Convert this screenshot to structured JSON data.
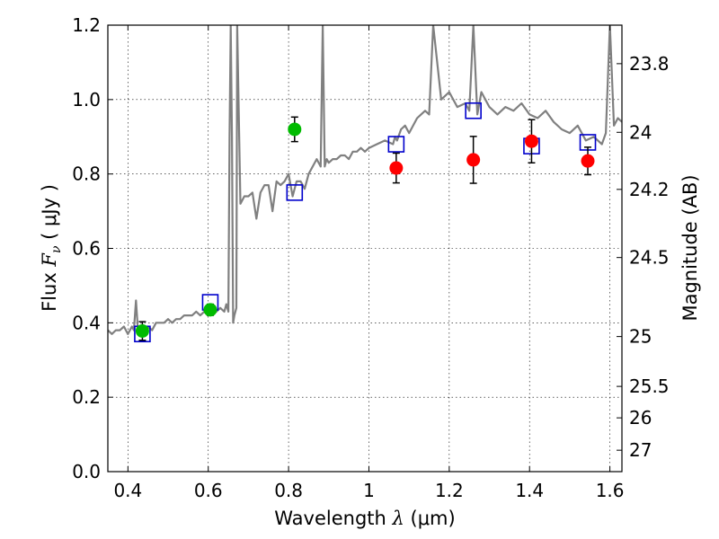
{
  "chart_data": {
    "type": "scatter",
    "title": "",
    "xlabel": {
      "prefix": "Wavelength  ",
      "symbol": "λ",
      "units": " (μm)"
    },
    "ylabel": {
      "prefix": "Flux  ",
      "symbol": "F",
      "subscript": "ν",
      "units": "  ( μJy )"
    },
    "y2label": "Magnitude (AB)",
    "xlim": [
      0.35,
      1.63
    ],
    "ylim": [
      0.0,
      1.2
    ],
    "xticks": [
      {
        "value": 0.4,
        "label": "0.4"
      },
      {
        "value": 0.6,
        "label": "0.6"
      },
      {
        "value": 0.8,
        "label": "0.8"
      },
      {
        "value": 1.0,
        "label": "1"
      },
      {
        "value": 1.2,
        "label": "1.2"
      },
      {
        "value": 1.4,
        "label": "1.4"
      },
      {
        "value": 1.6,
        "label": "1.6"
      }
    ],
    "yticks": [
      {
        "value": 0.0,
        "label": "0.0"
      },
      {
        "value": 0.2,
        "label": "0.2"
      },
      {
        "value": 0.4,
        "label": "0.4"
      },
      {
        "value": 0.6,
        "label": "0.6"
      },
      {
        "value": 0.8,
        "label": "0.8"
      },
      {
        "value": 1.0,
        "label": "1.0"
      },
      {
        "value": 1.2,
        "label": "1.2"
      }
    ],
    "y2ticks": [
      {
        "label": "23.8",
        "mag": 23.8
      },
      {
        "label": "24",
        "mag": 24.0
      },
      {
        "label": "24.2",
        "mag": 24.2
      },
      {
        "label": "24.5",
        "mag": 24.5
      },
      {
        "label": "25",
        "mag": 25.0
      },
      {
        "label": "25.5",
        "mag": 25.5
      },
      {
        "label": "26",
        "mag": 26.0
      },
      {
        "label": "27",
        "mag": 27.0
      }
    ],
    "grid": true,
    "colors": {
      "model": "#808080",
      "green_points": "#00bb00",
      "red_points": "#ff0000",
      "model_boxes": "#0000cc",
      "errorbars": "#000000"
    },
    "series": [
      {
        "kind": "line",
        "x": [
          0.35,
          0.36,
          0.37,
          0.38,
          0.39,
          0.4,
          0.41,
          0.415,
          0.42,
          0.425,
          0.43,
          0.44,
          0.45,
          0.46,
          0.47,
          0.48,
          0.49,
          0.5,
          0.51,
          0.52,
          0.53,
          0.54,
          0.55,
          0.56,
          0.57,
          0.58,
          0.59,
          0.6,
          0.61,
          0.62,
          0.63,
          0.64,
          0.645,
          0.65,
          0.653,
          0.656,
          0.659,
          0.662,
          0.665,
          0.67,
          0.672,
          0.68,
          0.69,
          0.7,
          0.71,
          0.72,
          0.73,
          0.74,
          0.75,
          0.76,
          0.77,
          0.78,
          0.79,
          0.8,
          0.81,
          0.82,
          0.83,
          0.84,
          0.85,
          0.86,
          0.87,
          0.88,
          0.885,
          0.89,
          0.895,
          0.9,
          0.91,
          0.92,
          0.93,
          0.94,
          0.95,
          0.96,
          0.97,
          0.98,
          0.99,
          1.0,
          1.02,
          1.04,
          1.06,
          1.065,
          1.07,
          1.08,
          1.09,
          1.1,
          1.12,
          1.14,
          1.15,
          1.16,
          1.18,
          1.2,
          1.22,
          1.24,
          1.25,
          1.26,
          1.27,
          1.28,
          1.3,
          1.32,
          1.34,
          1.36,
          1.38,
          1.4,
          1.42,
          1.44,
          1.46,
          1.48,
          1.5,
          1.52,
          1.54,
          1.56,
          1.58,
          1.59,
          1.6,
          1.61,
          1.62,
          1.63
        ],
        "y": [
          0.38,
          0.37,
          0.38,
          0.38,
          0.39,
          0.37,
          0.39,
          0.38,
          0.46,
          0.38,
          0.38,
          0.38,
          0.39,
          0.38,
          0.4,
          0.4,
          0.4,
          0.41,
          0.4,
          0.41,
          0.41,
          0.42,
          0.42,
          0.42,
          0.43,
          0.42,
          0.43,
          0.44,
          0.43,
          0.43,
          0.44,
          0.43,
          0.45,
          0.43,
          0.9,
          1.2,
          0.9,
          0.4,
          0.42,
          0.44,
          1.2,
          0.72,
          0.74,
          0.74,
          0.75,
          0.68,
          0.75,
          0.77,
          0.77,
          0.7,
          0.78,
          0.77,
          0.78,
          0.8,
          0.74,
          0.78,
          0.78,
          0.76,
          0.8,
          0.82,
          0.84,
          0.82,
          1.2,
          0.82,
          0.84,
          0.83,
          0.84,
          0.84,
          0.85,
          0.85,
          0.84,
          0.86,
          0.86,
          0.87,
          0.86,
          0.87,
          0.88,
          0.89,
          0.88,
          0.9,
          0.89,
          0.92,
          0.93,
          0.91,
          0.95,
          0.97,
          0.96,
          1.2,
          1.0,
          1.02,
          0.98,
          0.99,
          0.97,
          1.2,
          0.96,
          1.02,
          0.98,
          0.96,
          0.98,
          0.97,
          0.99,
          0.96,
          0.95,
          0.97,
          0.94,
          0.92,
          0.91,
          0.93,
          0.89,
          0.9,
          0.88,
          0.91,
          1.2,
          0.93,
          0.95,
          0.94
        ]
      },
      {
        "kind": "boxes",
        "x": [
          0.436,
          0.605,
          0.815,
          1.068,
          1.26,
          1.405,
          1.545
        ],
        "y": [
          0.37,
          0.455,
          0.75,
          0.88,
          0.97,
          0.875,
          0.885
        ]
      },
      {
        "kind": "points",
        "marker": "green",
        "x": [
          0.436,
          0.605,
          0.815
        ],
        "y": [
          0.378,
          0.435,
          0.92
        ],
        "yerr": [
          0.025,
          0.015,
          0.033
        ]
      },
      {
        "kind": "points",
        "marker": "red",
        "x": [
          1.068,
          1.26,
          1.405,
          1.545
        ],
        "y": [
          0.816,
          0.838,
          0.888,
          0.835
        ],
        "yerr": [
          0.04,
          0.063,
          0.058,
          0.037
        ]
      }
    ]
  }
}
